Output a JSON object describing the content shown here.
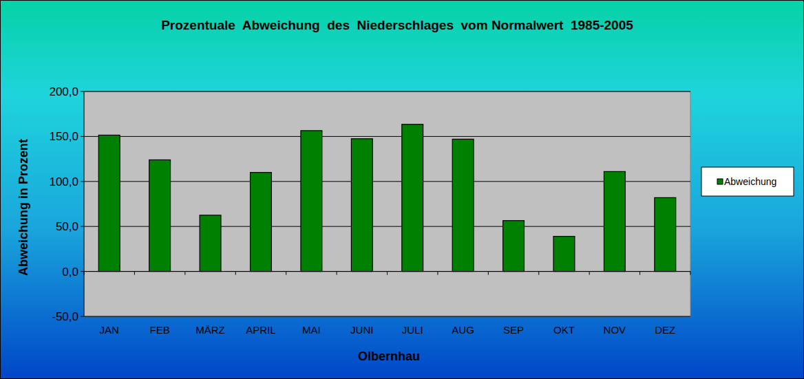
{
  "chart_data": {
    "type": "bar",
    "title": "Prozentuale  Abweichung  des  Niederschlages  vom Normalwert  1985-2005",
    "x_label": "Olbernhau",
    "y_label": "Abweichung in Prozent",
    "categories": [
      "JAN",
      "FEB",
      "MÄRZ",
      "APRIL",
      "MAI",
      "JUNI",
      "JULI",
      "AUG",
      "SEP",
      "OKT",
      "NOV",
      "DEZ"
    ],
    "series": [
      {
        "name": "Abweichung",
        "color": "#008000",
        "values": [
          151.5,
          124,
          62.5,
          110,
          156.5,
          147.5,
          163.5,
          147,
          56.5,
          39,
          111,
          82
        ]
      }
    ],
    "ylim": [
      -50,
      200
    ],
    "yticks": [
      {
        "value": -50,
        "label": "-50,0"
      },
      {
        "value": 0,
        "label": "0,0"
      },
      {
        "value": 50,
        "label": "50,0"
      },
      {
        "value": 100,
        "label": "100,0"
      },
      {
        "value": 150,
        "label": "150,0"
      },
      {
        "value": 200,
        "label": "200,0"
      }
    ],
    "grid": true,
    "legend": "right"
  }
}
